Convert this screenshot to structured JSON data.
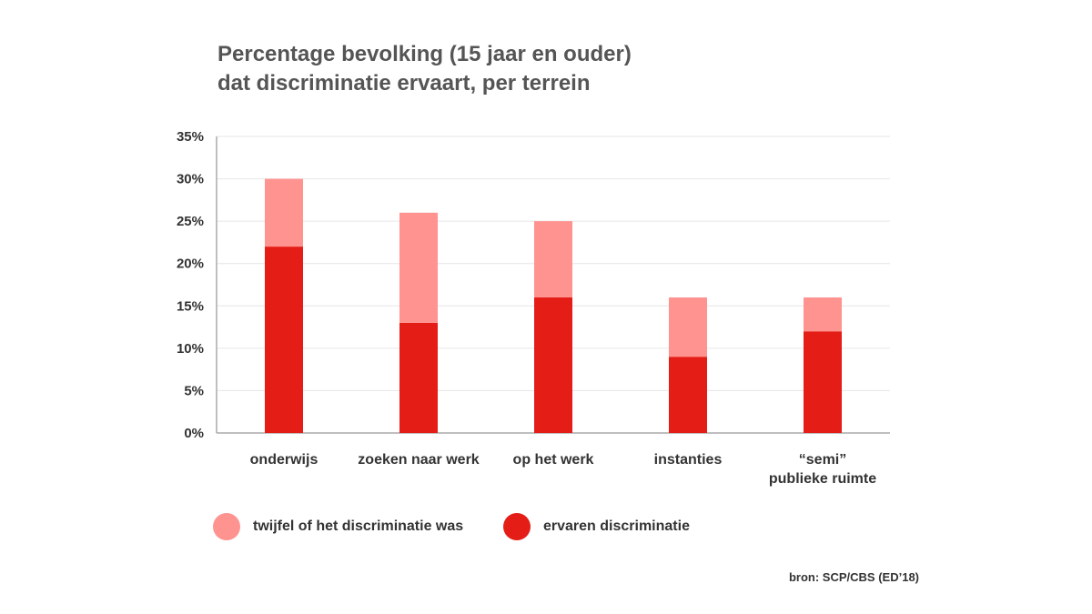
{
  "chart_data": {
    "type": "bar",
    "stacked": true,
    "title": "Percentage bevolking (15 jaar en ouder) dat discriminatie ervaart, per terrein",
    "title_lines": [
      "Percentage bevolking (15 jaar en ouder)",
      "dat discriminatie ervaart, per terrein"
    ],
    "categories": [
      {
        "lines": [
          "onderwijs"
        ]
      },
      {
        "lines": [
          "zoeken naar werk"
        ]
      },
      {
        "lines": [
          "op het werk"
        ]
      },
      {
        "lines": [
          "instanties"
        ]
      },
      {
        "lines": [
          "“semi”",
          "publieke ruimte"
        ]
      }
    ],
    "series": [
      {
        "name": "ervaren discriminatie",
        "color": "#e41e16",
        "values": [
          22,
          13,
          16,
          9,
          12
        ]
      },
      {
        "name": "twijfel of het discriminatie was",
        "color": "#ff9390",
        "values": [
          8,
          13,
          9,
          7,
          4
        ]
      }
    ],
    "ylim": [
      0,
      35
    ],
    "yticks": [
      0,
      5,
      10,
      15,
      20,
      25,
      30,
      35
    ],
    "ytick_labels": [
      "0%",
      "5%",
      "10%",
      "15%",
      "20%",
      "25%",
      "30%",
      "35%"
    ],
    "xlabel": "",
    "ylabel": "",
    "grid": true,
    "legend_placement": "bottom-left"
  },
  "legend": [
    {
      "label": "twijfel of het discriminatie was",
      "color": "#ff9390"
    },
    {
      "label": "ervaren discriminatie",
      "color": "#e41e16"
    }
  ],
  "source": "bron: SCP/CBS (ED’18)",
  "colors": {
    "axis": "#aaaaaa",
    "grid": "#e6e6e6",
    "text": "#333333",
    "title": "#555555"
  }
}
